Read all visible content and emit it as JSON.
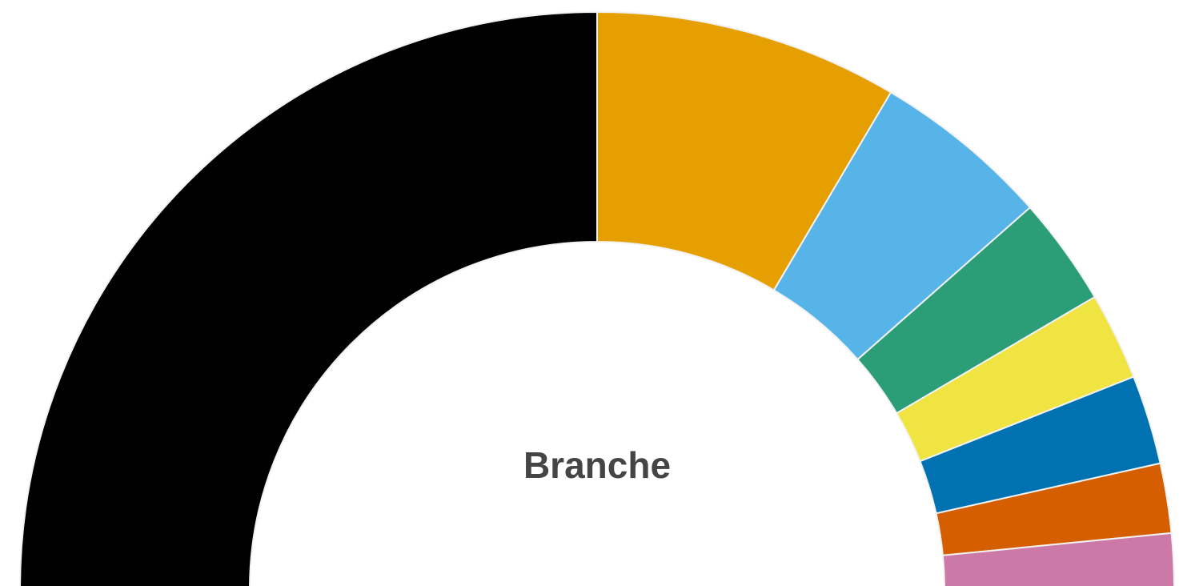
{
  "chart_data": {
    "type": "half-donut",
    "title": "Branche",
    "values": [
      50,
      17,
      10,
      6.1,
      4.9,
      5,
      3.9,
      3.1
    ],
    "colors": [
      "#000000",
      "#e69f00",
      "#56b4e9",
      "#2b9e77",
      "#f0e442",
      "#0072b2",
      "#d55e00",
      "#cc79a7"
    ]
  }
}
